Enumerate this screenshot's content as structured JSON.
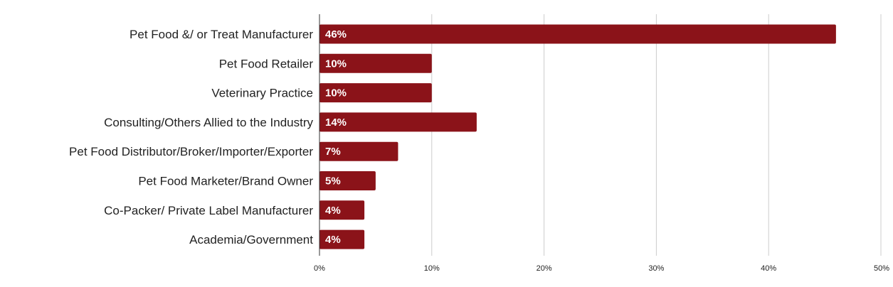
{
  "chart_data": {
    "type": "bar",
    "orientation": "horizontal",
    "title": "",
    "xlabel": "",
    "ylabel": "",
    "categories": [
      "Pet Food &/ or Treat Manufacturer",
      "Pet Food Retailer",
      "Veterinary Practice",
      "Consulting/Others Allied to the Industry",
      "Pet Food Distributor/Broker/Importer/Exporter",
      "Pet Food Marketer/Brand Owner",
      "Co-Packer/ Private Label Manufacturer",
      "Academia/Government"
    ],
    "values": [
      46,
      10,
      10,
      14,
      7,
      5,
      4,
      4
    ],
    "data_labels": [
      "46%",
      "10%",
      "10%",
      "14%",
      "7%",
      "5%",
      "4%",
      "4%"
    ],
    "xlim": [
      0,
      50
    ],
    "x_ticks": [
      0,
      10,
      20,
      30,
      40,
      50
    ],
    "x_tick_labels": [
      "0%",
      "10%",
      "20%",
      "30%",
      "40%",
      "50%"
    ],
    "grid": "vertical",
    "bar_color": "#8b1319",
    "grid_color": "#cccccc",
    "legend": "none"
  }
}
